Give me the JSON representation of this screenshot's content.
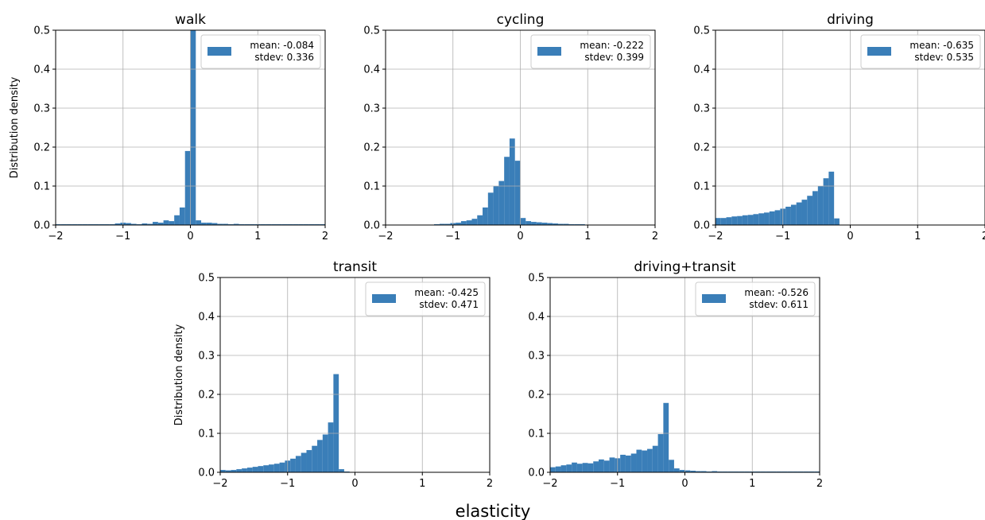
{
  "figure": {
    "xlabel": "elasticity",
    "ylabel": "Distribution density",
    "bar_color": "#3a7eb8"
  },
  "chart_data": [
    {
      "type": "bar",
      "title": "walk",
      "xlim": [
        -2,
        2
      ],
      "ylim": [
        0,
        0.5
      ],
      "xticks": [
        "−2",
        "−1",
        "0",
        "1",
        "2"
      ],
      "yticks": [
        "0.0",
        "0.1",
        "0.2",
        "0.3",
        "0.4",
        "0.5"
      ],
      "grid": true,
      "legend_position": "top-right",
      "legend": {
        "line1": "mean: -0.084",
        "line2": "stdev: 0.336"
      },
      "bin_width": 0.08,
      "bin_start": -2.0,
      "values": [
        0.002,
        0.002,
        0.002,
        0.002,
        0.002,
        0.002,
        0.002,
        0.002,
        0.002,
        0.002,
        0.002,
        0.004,
        0.006,
        0.005,
        0.003,
        0.002,
        0.004,
        0.003,
        0.008,
        0.006,
        0.012,
        0.01,
        0.025,
        0.045,
        0.19,
        0.52,
        0.012,
        0.006,
        0.006,
        0.005,
        0.003,
        0.003,
        0.002,
        0.003,
        0.002,
        0.002,
        0.002,
        0.002,
        0.002,
        0.002,
        0.002,
        0.002,
        0.002,
        0.002,
        0.002,
        0.002,
        0.002,
        0.002,
        0.002,
        0.002
      ]
    },
    {
      "type": "bar",
      "title": "cycling",
      "xlim": [
        -2,
        2
      ],
      "ylim": [
        0,
        0.5
      ],
      "xticks": [
        "−2",
        "−1",
        "0",
        "1",
        "2"
      ],
      "yticks": [
        "0.0",
        "0.1",
        "0.2",
        "0.3",
        "0.4",
        "0.5"
      ],
      "grid": true,
      "legend_position": "top-right",
      "legend": {
        "line1": "mean: -0.222",
        "line2": "stdev: 0.399"
      },
      "bin_width": 0.08,
      "bin_start": -2.0,
      "values": [
        0.001,
        0.001,
        0.001,
        0.001,
        0.001,
        0.001,
        0.001,
        0.001,
        0.001,
        0.002,
        0.003,
        0.003,
        0.005,
        0.006,
        0.01,
        0.012,
        0.016,
        0.025,
        0.045,
        0.083,
        0.1,
        0.113,
        0.175,
        0.222,
        0.165,
        0.018,
        0.01,
        0.008,
        0.007,
        0.006,
        0.005,
        0.004,
        0.003,
        0.003,
        0.002,
        0.002,
        0.002,
        0.001,
        0.001,
        0.001,
        0.001,
        0.001,
        0.001,
        0.001,
        0.001,
        0.001,
        0.001,
        0.001,
        0.001,
        0.001
      ]
    },
    {
      "type": "bar",
      "title": "driving",
      "xlim": [
        -2,
        2
      ],
      "ylim": [
        0,
        0.5
      ],
      "xticks": [
        "−2",
        "−1",
        "0",
        "1",
        "2"
      ],
      "yticks": [
        "0.0",
        "0.1",
        "0.2",
        "0.3",
        "0.4",
        "0.5"
      ],
      "grid": true,
      "legend_position": "top-right",
      "legend": {
        "line1": "mean: -0.635",
        "line2": "stdev: 0.535"
      },
      "bin_width": 0.08,
      "bin_start": -2.0,
      "values": [
        0.018,
        0.018,
        0.02,
        0.022,
        0.023,
        0.025,
        0.026,
        0.028,
        0.03,
        0.032,
        0.035,
        0.038,
        0.042,
        0.047,
        0.052,
        0.058,
        0.065,
        0.075,
        0.087,
        0.1,
        0.12,
        0.137,
        0.017,
        0,
        0,
        0,
        0,
        0,
        0,
        0,
        0,
        0,
        0,
        0,
        0,
        0,
        0,
        0,
        0,
        0,
        0,
        0,
        0,
        0,
        0,
        0,
        0,
        0,
        0,
        0
      ]
    },
    {
      "type": "bar",
      "title": "transit",
      "xlim": [
        -2,
        2
      ],
      "ylim": [
        0,
        0.5
      ],
      "xticks": [
        "−2",
        "−1",
        "0",
        "1",
        "2"
      ],
      "yticks": [
        "0.0",
        "0.1",
        "0.2",
        "0.3",
        "0.4",
        "0.5"
      ],
      "grid": true,
      "legend_position": "top-right",
      "legend": {
        "line1": "mean: -0.425",
        "line2": "stdev: 0.471"
      },
      "bin_width": 0.08,
      "bin_start": -2.0,
      "values": [
        0.006,
        0.005,
        0.006,
        0.008,
        0.01,
        0.012,
        0.014,
        0.016,
        0.018,
        0.02,
        0.022,
        0.025,
        0.03,
        0.035,
        0.042,
        0.05,
        0.057,
        0.068,
        0.083,
        0.097,
        0.128,
        0.252,
        0.008,
        0.002,
        0.001,
        0.001,
        0.001,
        0.001,
        0.001,
        0.001,
        0.001,
        0,
        0,
        0,
        0,
        0,
        0,
        0,
        0,
        0,
        0,
        0,
        0,
        0,
        0,
        0,
        0,
        0,
        0,
        0
      ]
    },
    {
      "type": "bar",
      "title": "driving+transit",
      "xlim": [
        -2,
        2
      ],
      "ylim": [
        0,
        0.5
      ],
      "xticks": [
        "−2",
        "−1",
        "0",
        "1",
        "2"
      ],
      "yticks": [
        "0.0",
        "0.1",
        "0.2",
        "0.3",
        "0.4",
        "0.5"
      ],
      "grid": true,
      "legend_position": "top-right",
      "legend": {
        "line1": "mean: -0.526",
        "line2": "stdev: 0.611"
      },
      "bin_width": 0.08,
      "bin_start": -2.0,
      "values": [
        0.013,
        0.015,
        0.018,
        0.02,
        0.025,
        0.022,
        0.024,
        0.023,
        0.028,
        0.033,
        0.03,
        0.038,
        0.036,
        0.045,
        0.043,
        0.048,
        0.058,
        0.056,
        0.06,
        0.068,
        0.098,
        0.178,
        0.032,
        0.01,
        0.006,
        0.005,
        0.004,
        0.003,
        0.003,
        0.002,
        0.003,
        0.002,
        0.002,
        0.002,
        0.002,
        0.002,
        0.002,
        0.002,
        0.002,
        0.002,
        0.002,
        0.002,
        0.002,
        0.002,
        0.002,
        0.002,
        0.002,
        0.002,
        0.002,
        0.002
      ]
    }
  ]
}
